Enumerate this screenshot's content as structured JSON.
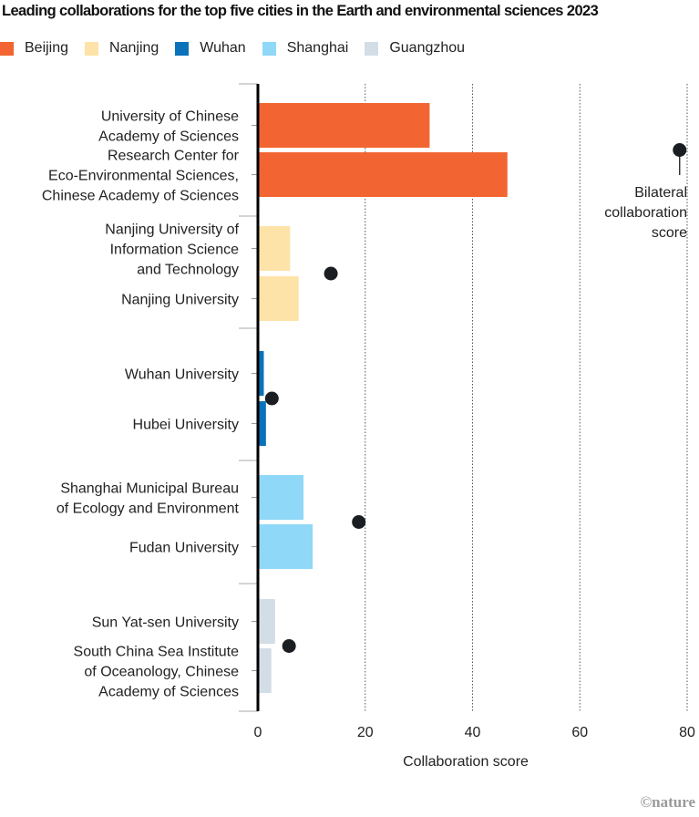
{
  "chart_data": {
    "type": "bar",
    "title": "Leading collaborations for the top five cities in the Earth and environmental sciences 2023",
    "xlabel": "Collaboration score",
    "ylabel": "",
    "xlim": [
      0,
      80
    ],
    "xticks": [
      0,
      20,
      40,
      60,
      80
    ],
    "xtick_labels": [
      "0",
      "20",
      "40",
      "60",
      "80"
    ],
    "grid": "vertical dotted",
    "legend_position": "top-left",
    "legend": [
      {
        "name": "Beijing",
        "color": "#f26532"
      },
      {
        "name": "Nanjing",
        "color": "#fde3a7"
      },
      {
        "name": "Wuhan",
        "color": "#0a72ba"
      },
      {
        "name": "Shanghai",
        "color": "#8fd8f8"
      },
      {
        "name": "Guangzhou",
        "color": "#d3dde6"
      }
    ],
    "groups": [
      {
        "city": "Beijing",
        "bilateral_score": 78.6,
        "bars": [
          {
            "label": [
              "University of Chinese",
              "Academy of Sciences"
            ],
            "value": 32.0
          },
          {
            "label": [
              "Research Center for",
              "Eco-Environmental Sciences,",
              "Chinese Academy of Sciences"
            ],
            "value": 46.5
          }
        ]
      },
      {
        "city": "Nanjing",
        "bilateral_score": 13.6,
        "bars": [
          {
            "label": [
              "Nanjing University of",
              "Information Science",
              "and Technology"
            ],
            "value": 6.0
          },
          {
            "label": [
              "Nanjing University"
            ],
            "value": 7.6
          }
        ]
      },
      {
        "city": "Wuhan",
        "bilateral_score": 2.6,
        "bars": [
          {
            "label": [
              "Wuhan University"
            ],
            "value": 1.1
          },
          {
            "label": [
              "Hubei University"
            ],
            "value": 1.5
          }
        ]
      },
      {
        "city": "Shanghai",
        "bilateral_score": 18.8,
        "bars": [
          {
            "label": [
              "Shanghai Municipal Bureau",
              "of Ecology and Environment"
            ],
            "value": 8.5
          },
          {
            "label": [
              "Fudan University"
            ],
            "value": 10.2
          }
        ]
      },
      {
        "city": "Guangzhou",
        "bilateral_score": 5.8,
        "bars": [
          {
            "label": [
              "Sun Yat-sen University"
            ],
            "value": 3.2
          },
          {
            "label": [
              "South China Sea Institute",
              "of Oceanology, Chinese",
              "Academy of Sciences"
            ],
            "value": 2.5
          }
        ]
      }
    ],
    "annotation": [
      "Bilateral",
      "collaboration",
      "score"
    ]
  },
  "credit": "©nature"
}
